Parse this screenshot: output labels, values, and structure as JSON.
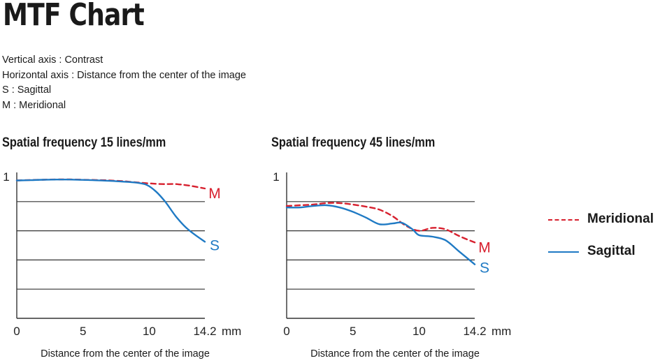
{
  "page": {
    "title": "MTF Chart",
    "legend_lines": [
      "Vertical axis : Contrast",
      "Horizontal axis : Distance from the center of the image",
      "S : Sagittal",
      "M : Meridional"
    ]
  },
  "colors": {
    "meridional": "#d7202e",
    "sagittal": "#1f7ac4",
    "axis": "#333333",
    "grid": "#333333"
  },
  "key": {
    "meridional": "Meridional",
    "sagittal": "Sagittal"
  },
  "chart_data": [
    {
      "type": "line",
      "title": "Spatial frequency 15 lines/mm",
      "xlabel": "Distance from the center of the image",
      "ylabel": "Contrast",
      "xlim": [
        0,
        14.2
      ],
      "ylim": [
        0,
        1
      ],
      "xticks": [
        0,
        5,
        10,
        14.2
      ],
      "xtick_labels": [
        "0",
        "5",
        "10",
        "14.2"
      ],
      "x_unit": "mm",
      "ytick_labels": [
        "1"
      ],
      "grid_y": [
        0.2,
        0.4,
        0.6,
        0.8
      ],
      "series": [
        {
          "name": "M",
          "key": "meridional",
          "dashed": true,
          "x": [
            0,
            1,
            2,
            3,
            4,
            5,
            6,
            7,
            8,
            9,
            10,
            11,
            12,
            13,
            14.2
          ],
          "y": [
            0.945,
            0.948,
            0.95,
            0.952,
            0.952,
            0.95,
            0.948,
            0.945,
            0.94,
            0.932,
            0.925,
            0.92,
            0.92,
            0.91,
            0.89
          ]
        },
        {
          "name": "S",
          "key": "sagittal",
          "dashed": false,
          "x": [
            0,
            1,
            2,
            3,
            4,
            5,
            6,
            7,
            8,
            9,
            9.8,
            10.5,
            11.2,
            12,
            12.8,
            13.5,
            14.2
          ],
          "y": [
            0.945,
            0.947,
            0.95,
            0.951,
            0.951,
            0.949,
            0.946,
            0.942,
            0.937,
            0.93,
            0.915,
            0.87,
            0.8,
            0.7,
            0.62,
            0.57,
            0.525
          ]
        }
      ]
    },
    {
      "type": "line",
      "title": "Spatial frequency 45 lines/mm",
      "xlabel": "Distance from the center of the image",
      "ylabel": "Contrast",
      "xlim": [
        0,
        14.2
      ],
      "ylim": [
        0,
        1
      ],
      "xticks": [
        0,
        5,
        10,
        14.2
      ],
      "xtick_labels": [
        "0",
        "5",
        "10",
        "14.2"
      ],
      "x_unit": "mm",
      "ytick_labels": [
        "1"
      ],
      "grid_y": [
        0.2,
        0.4,
        0.6,
        0.8
      ],
      "series": [
        {
          "name": "M",
          "key": "meridional",
          "dashed": true,
          "x": [
            0,
            1,
            2,
            3,
            4,
            5,
            6,
            7,
            8,
            9,
            10,
            11,
            12,
            13,
            14.2
          ],
          "y": [
            0.77,
            0.775,
            0.78,
            0.79,
            0.79,
            0.78,
            0.765,
            0.745,
            0.7,
            0.635,
            0.6,
            0.62,
            0.61,
            0.565,
            0.52
          ]
        },
        {
          "name": "S",
          "key": "sagittal",
          "dashed": false,
          "x": [
            0,
            1,
            2,
            3,
            4,
            5,
            6,
            7,
            8,
            8.7,
            9.5,
            10,
            11,
            12,
            13,
            14.2
          ],
          "y": [
            0.76,
            0.76,
            0.77,
            0.775,
            0.76,
            0.73,
            0.69,
            0.645,
            0.65,
            0.655,
            0.61,
            0.57,
            0.56,
            0.535,
            0.46,
            0.37
          ]
        }
      ]
    }
  ]
}
